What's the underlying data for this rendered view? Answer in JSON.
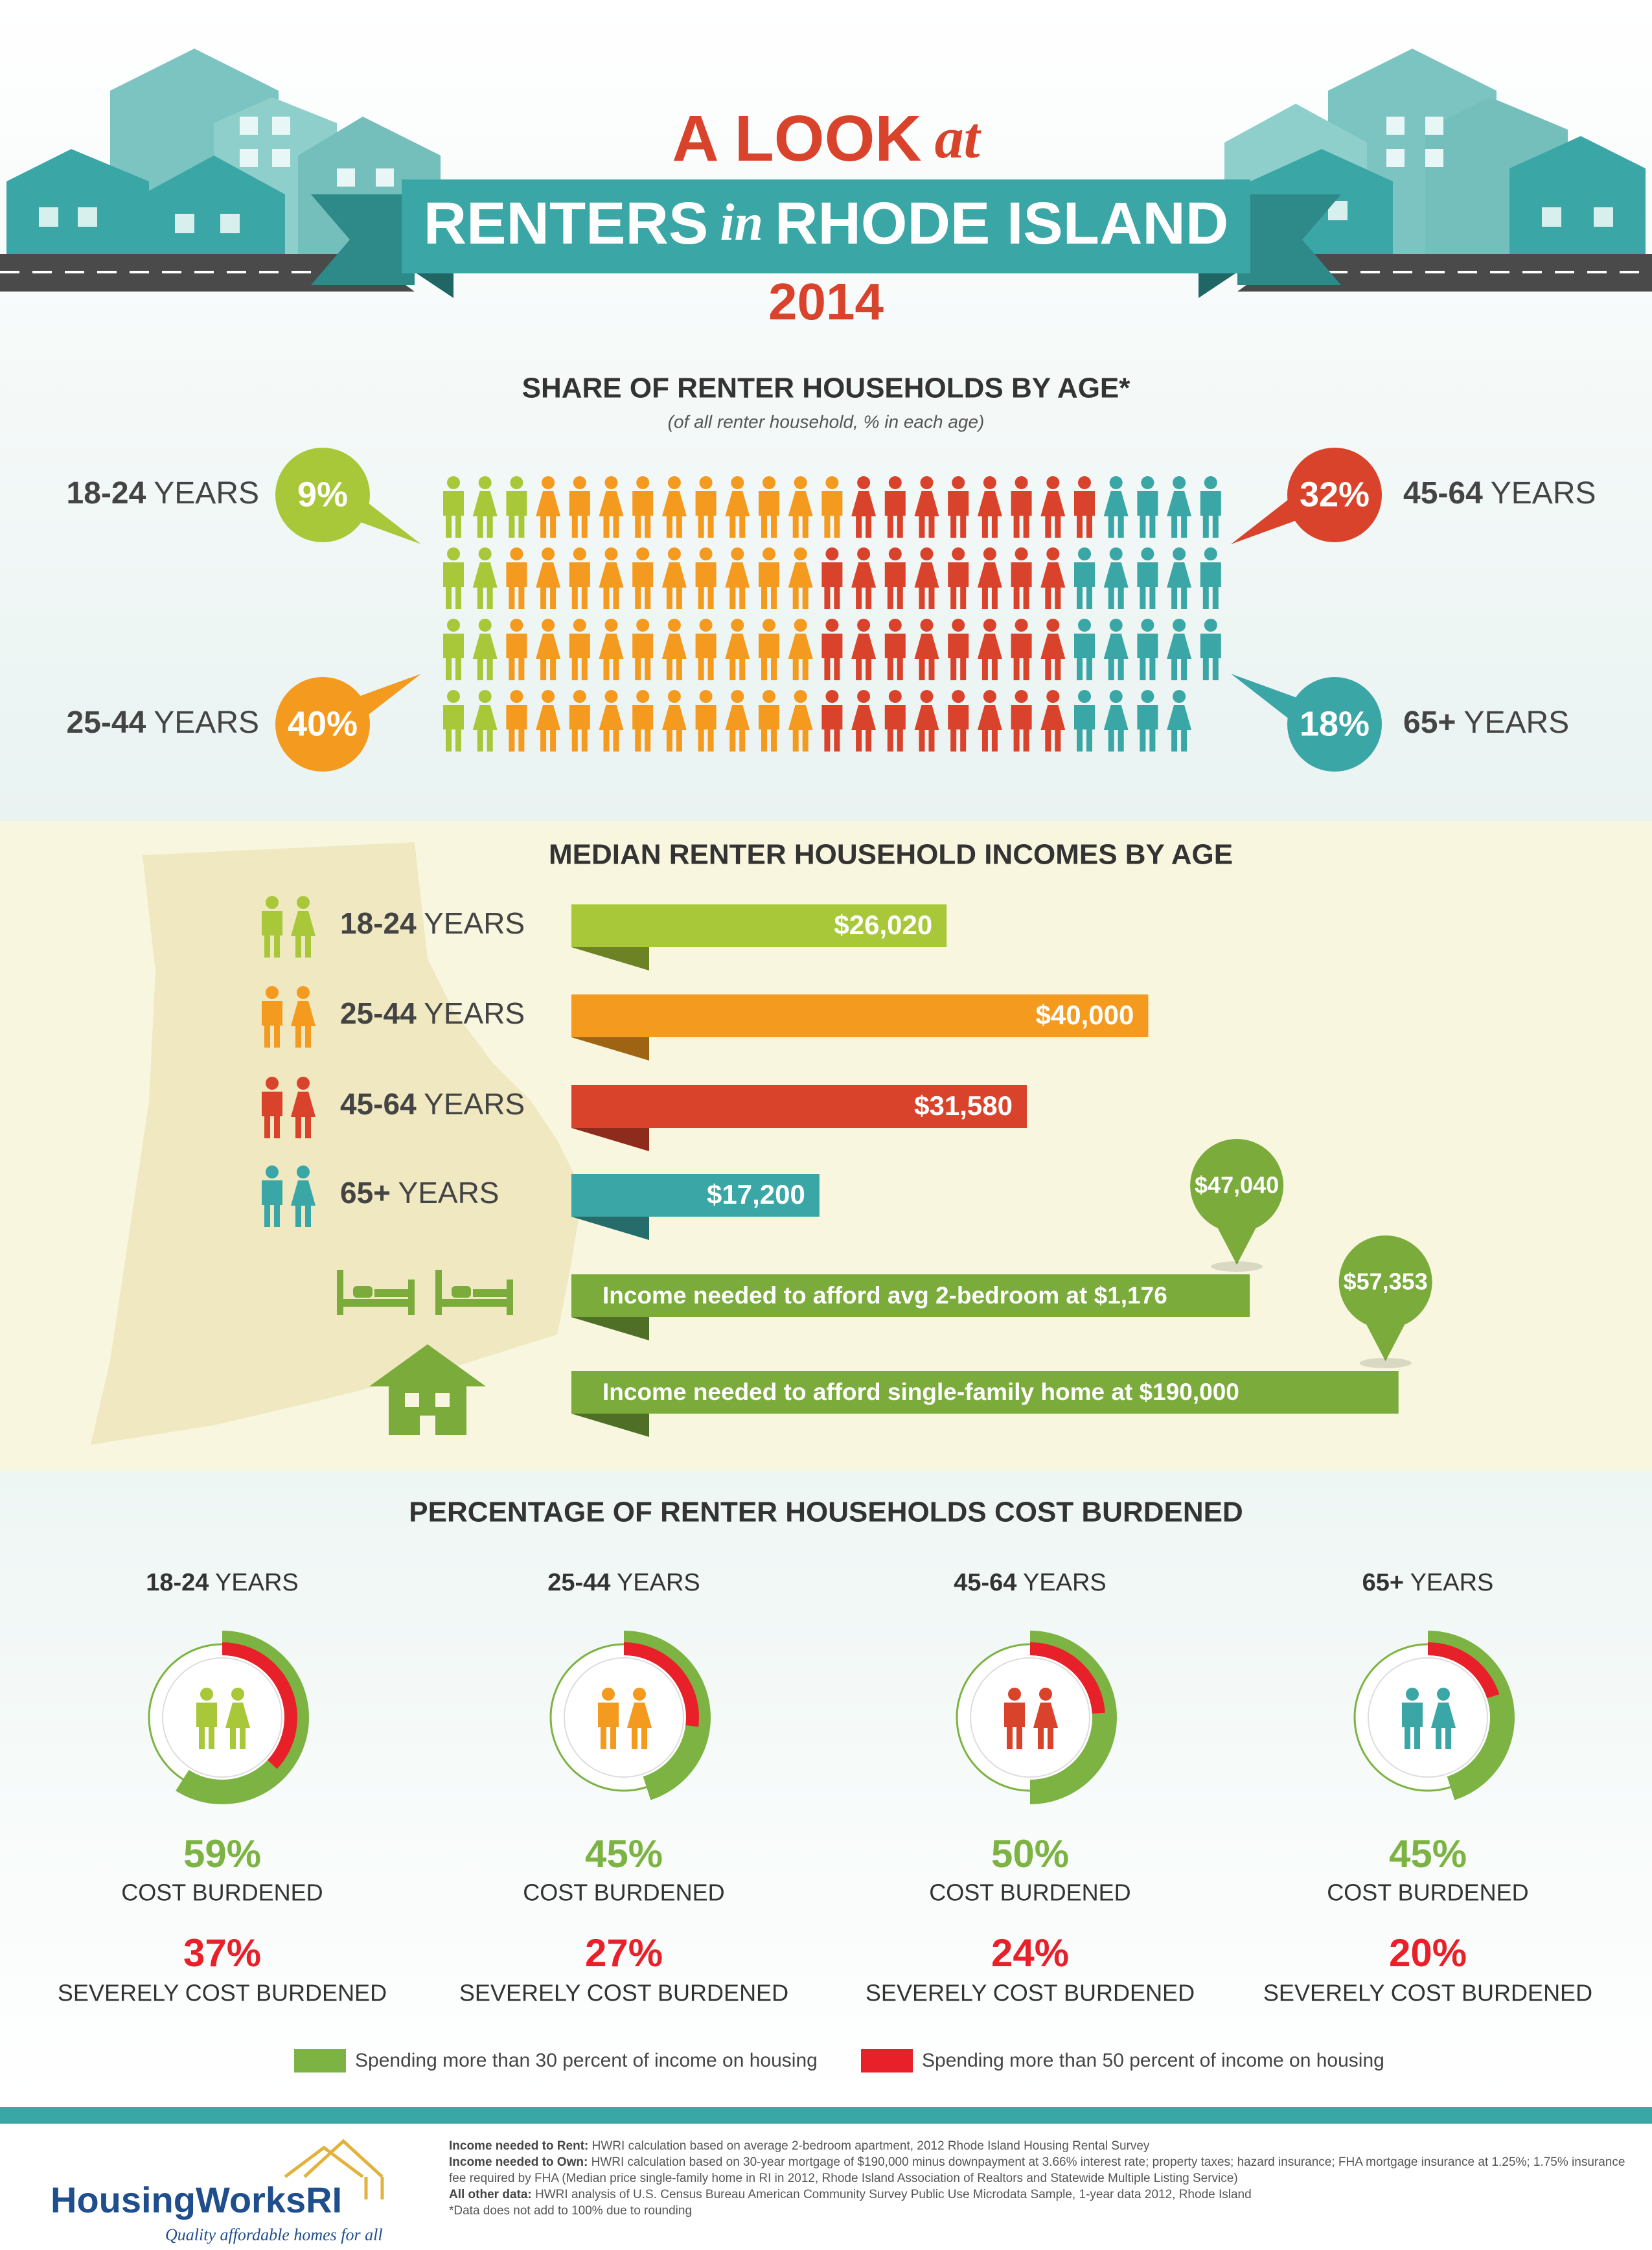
{
  "header": {
    "title_a": "A LOOK",
    "title_a_small": "at",
    "title_b1": "RENTERS",
    "title_b_small": "in",
    "title_b2": "RHODE ISLAND",
    "year": "2014"
  },
  "age_unit": "YEARS",
  "groups": [
    {
      "age": "18-24",
      "color": "#a8c83a"
    },
    {
      "age": "25-44",
      "color": "#f39a1f"
    },
    {
      "age": "45-64",
      "color": "#d9432b"
    },
    {
      "age": "65+",
      "color": "#3aa6a5"
    }
  ],
  "share": {
    "title": "SHARE OF RENTER HOUSEHOLDS BY AGE*",
    "subtitle": "(of all renter household, % in each age)",
    "values": [
      9,
      40,
      32,
      18
    ],
    "value_labels": [
      "9%",
      "40%",
      "32%",
      "18%"
    ]
  },
  "incomes": {
    "title": "MEDIAN RENTER HOUSEHOLD INCOMES BY AGE",
    "values": [
      26020,
      40000,
      31580,
      17200
    ],
    "value_labels": [
      "$26,020",
      "$40,000",
      "$31,580",
      "$17,200"
    ],
    "need_color": "#7aab3b",
    "needs": [
      {
        "label": "Income needed to afford avg 2-bedroom at $1,176",
        "value": 47040,
        "value_label": "$47,040"
      },
      {
        "label": "Income needed to afford single-family home at $190,000",
        "value": 57353,
        "value_label": "$57,353"
      }
    ]
  },
  "burden": {
    "title": "PERCENTAGE OF RENTER HOUSEHOLDS COST BURDENED",
    "cost_label": "COST BURDENED",
    "severe_label": "SEVERELY COST BURDENED",
    "cost_values": [
      59,
      45,
      50,
      45
    ],
    "cost_value_labels": [
      "59%",
      "45%",
      "50%",
      "45%"
    ],
    "severe_values": [
      37,
      27,
      24,
      20
    ],
    "severe_value_labels": [
      "37%",
      "27%",
      "24%",
      "20%"
    ],
    "cost_color": "#7cb342",
    "severe_color": "#e8202a",
    "legend": [
      "Spending more than 30 percent of income on housing",
      "Spending more than 50 percent of income on housing"
    ]
  },
  "footer": {
    "logo": "HousingWorksRI",
    "tagline": "Quality affordable homes for all",
    "notes": [
      {
        "lead": "Income needed to Rent:",
        "text": "HWRI calculation based on average 2-bedroom apartment, 2012 Rhode Island Housing Rental Survey"
      },
      {
        "lead": "Income needed to Own:",
        "text": "HWRI calculation based on 30-year mortgage of $190,000 minus downpayment at 3.66% interest rate; property taxes; hazard insurance; FHA mortgage insurance at 1.25%; 1.75% insurance fee required by FHA (Median price single-family home in RI in 2012, Rhode Island Association of Realtors and Statewide Multiple Listing Service)"
      },
      {
        "lead": "All other data:",
        "text": "HWRI analysis of U.S. Census Bureau American Community Survey Public Use Microdata Sample, 1-year data 2012, Rhode Island"
      }
    ],
    "footnote": "*Data does not add to 100% due to rounding"
  }
}
